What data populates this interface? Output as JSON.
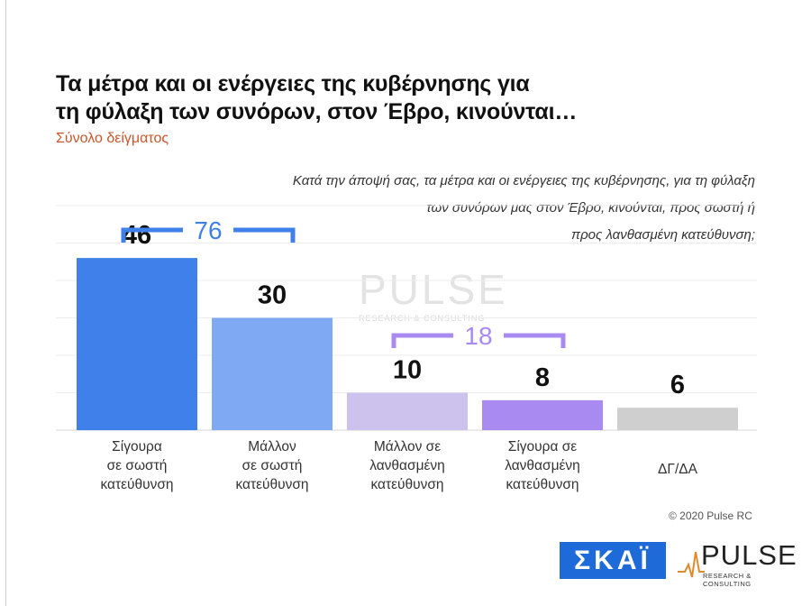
{
  "header": {
    "title_line1": "Τα μέτρα και οι ενέργειες της κυβέρνησης για",
    "title_line2": "τη φύλαξη των συνόρων, στον Έβρο, κινούνται…",
    "subtitle": "Σύνολο δείγματος",
    "question_line1": "Κατά την άποψή σας, τα μέτρα και οι ενέργειες της κυβέρνησης, για τη φύλαξη",
    "question_line2": "των συνόρων μας στον Έβρο, κινούνται, προς σωστή ή",
    "question_line3": "προς λανθασμένη κατεύθυνση;"
  },
  "watermark": {
    "brand": "PULSE",
    "tagline": "RESEARCH & CONSULTING"
  },
  "chart_data": {
    "type": "bar",
    "title": "Τα μέτρα και οι ενέργειες της κυβέρνησης για τη φύλαξη των συνόρων, στον Έβρο, κινούνται…",
    "subtitle": "Σύνολο δείγματος",
    "categories": [
      [
        "Σίγουρα",
        "σε σωστή",
        "κατεύθυνση"
      ],
      [
        "Μάλλον",
        "σε σωστή",
        "κατεύθυνση"
      ],
      [
        "Μάλλον σε",
        "λανθασμένη",
        "κατεύθυνση"
      ],
      [
        "Σίγουρα σε",
        "λανθασμένη",
        "κατεύθυνση"
      ],
      [
        "ΔΓ/ΔΑ"
      ]
    ],
    "values": [
      46,
      30,
      10,
      8,
      6
    ],
    "value_labels": [
      "46",
      "30",
      "10",
      "8",
      "6"
    ],
    "colors": [
      "#3f80ea",
      "#7fa9f2",
      "#cdc2ee",
      "#a88af1",
      "#cfcfcf"
    ],
    "ylim": [
      0,
      60
    ],
    "grid": true,
    "brackets": [
      {
        "label": "76",
        "from": 0,
        "to": 1,
        "color": "#3f80ea"
      },
      {
        "label": "18",
        "from": 2,
        "to": 3,
        "color": "#a88af1"
      }
    ]
  },
  "footer": {
    "copyright": "© 2020 Pulse RC",
    "logo_skai": "ΣΚΑΪ",
    "logo_pulse": "PULSE",
    "logo_pulse_sub": "RESEARCH & CONSULTING"
  }
}
